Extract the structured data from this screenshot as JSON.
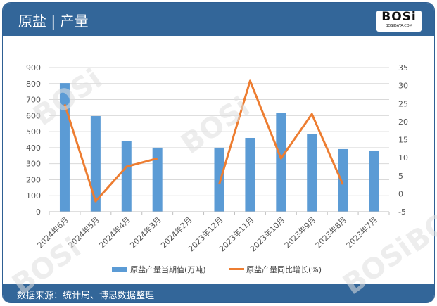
{
  "header": {
    "title": "原盐 | 产量",
    "logo_text": "BOSi",
    "logo_subtext": "BOSIDATA.COM"
  },
  "footer": {
    "source": "数据来源：统计局、博思数据整理"
  },
  "watermark": "BOSi 博思数据 BosiData Research",
  "chart_data": {
    "type": "bar+line",
    "categories": [
      "2024年6月",
      "2024年5月",
      "2024年4月",
      "2024年3月",
      "2024年2月",
      "2023年12月",
      "2023年11月",
      "2023年10月",
      "2023年9月",
      "2023年8月",
      "2023年7月"
    ],
    "series": [
      {
        "name": "原盐产量当期值(万吨)",
        "type": "bar",
        "axis": "left",
        "color": "#5b9bd5",
        "values": [
          803,
          597,
          443,
          400,
          null,
          400,
          461,
          615,
          483,
          391,
          382
        ]
      },
      {
        "name": "原盐产量同比增长(%)",
        "type": "line",
        "axis": "right",
        "color": "#ed7d31",
        "values": [
          24.8,
          -2.1,
          7.5,
          9.8,
          null,
          2.6,
          31.3,
          9.8,
          22.1,
          2.6,
          null
        ]
      }
    ],
    "ylim_left": [
      0,
      900
    ],
    "yticks_left": [
      0,
      100,
      200,
      300,
      400,
      500,
      600,
      700,
      800,
      900
    ],
    "ylim_right": [
      -5,
      35
    ],
    "yticks_right": [
      -5,
      0,
      5,
      10,
      15,
      20,
      25,
      30,
      35
    ],
    "grid": true,
    "legend": "bottom"
  }
}
